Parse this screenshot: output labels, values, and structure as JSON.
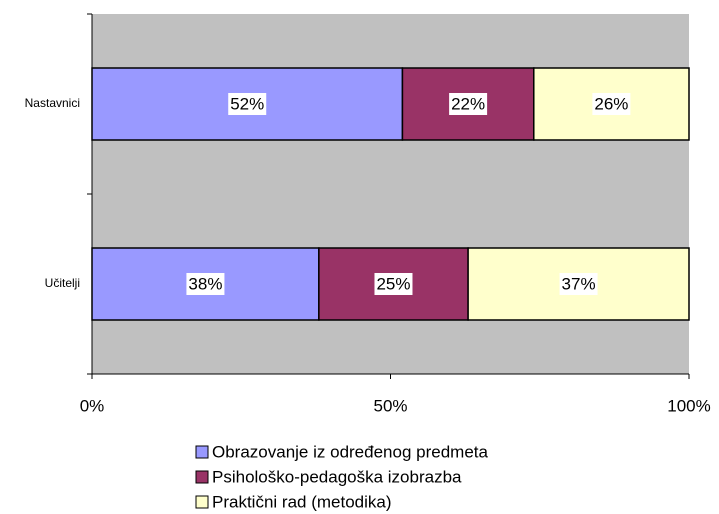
{
  "chart_data": {
    "type": "stacked_barh",
    "categories": [
      "Nastavnici",
      "Učitelji"
    ],
    "series": [
      {
        "name": "Obrazovanje iz određenog predmeta",
        "color": "#9999ff",
        "values": [
          52,
          38
        ],
        "value_labels": [
          "52%",
          "38%"
        ]
      },
      {
        "name": "Psihološko-pedagoška izobrazba",
        "color": "#993366",
        "values": [
          22,
          25
        ],
        "value_labels": [
          "22%",
          "25%"
        ]
      },
      {
        "name": "Praktični rad (metodika)",
        "color": "#ffffcc",
        "values": [
          26,
          37
        ],
        "value_labels": [
          "26%",
          "37%"
        ]
      }
    ],
    "xlim": [
      0,
      100
    ],
    "xticks": [
      {
        "value": 0,
        "label": "0%"
      },
      {
        "value": 50,
        "label": "50%"
      },
      {
        "value": 100,
        "label": "100%"
      }
    ],
    "plot_background": "#c0c0c0",
    "legend": "bottom"
  }
}
